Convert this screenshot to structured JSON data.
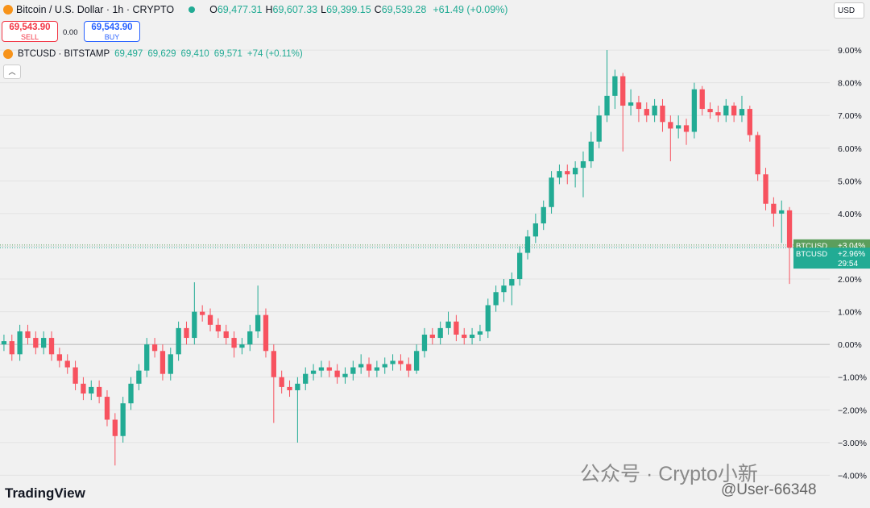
{
  "header": {
    "symbol_title": "Bitcoin / U.S. Dollar · 1h · CRYPTO",
    "ohlc": [
      {
        "label": "O",
        "value": "69,477.31"
      },
      {
        "label": "H",
        "value": "69,607.33"
      },
      {
        "label": "L",
        "value": "69,399.15"
      },
      {
        "label": "C",
        "value": "69,539.28"
      }
    ],
    "change": "+61.49 (+0.09%)",
    "sell": {
      "price": "69,543.90",
      "label": "SELL"
    },
    "spread": "0.00",
    "buy": {
      "price": "69,543.90",
      "label": "BUY"
    },
    "compare": {
      "symbol": "BTCUSD · BITSTAMP",
      "values": [
        "69,497",
        "69,629",
        "69,410",
        "69,571",
        "+74 (+0.11%)"
      ]
    },
    "currency": "USD"
  },
  "watermarks": {
    "logo": "TradingView",
    "channel": "公众号 · Crypto小新",
    "user": "@User-66348"
  },
  "chart_data": {
    "type": "candlestick",
    "up_color": "#22ab94",
    "down_color": "#f7525f",
    "ylim": [
      -5,
      10.53
    ],
    "yticks": [
      {
        "value": 9,
        "label": "9.00%"
      },
      {
        "value": 8,
        "label": "8.00%"
      },
      {
        "value": 7,
        "label": "7.00%"
      },
      {
        "value": 6,
        "label": "6.00%"
      },
      {
        "value": 5,
        "label": "5.00%"
      },
      {
        "value": 4,
        "label": "4.00%"
      },
      {
        "value": 3,
        "label": "3.00%"
      },
      {
        "value": 2,
        "label": "2.00%"
      },
      {
        "value": 1,
        "label": "1.00%"
      },
      {
        "value": 0,
        "label": "0.00%"
      },
      {
        "value": -1,
        "label": "−1.00%"
      },
      {
        "value": -2,
        "label": "−2.00%"
      },
      {
        "value": -3,
        "label": "−3.00%"
      },
      {
        "value": -4,
        "label": "−4.00%"
      }
    ],
    "grid": true,
    "price_labels": [
      {
        "name": "BTCUSD",
        "value": 3.04,
        "label": "+3.04%",
        "color": "#5c9e5c"
      },
      {
        "name": "BTCUSD",
        "value": 2.96,
        "label": "+2.96%",
        "color": "#22ab94",
        "countdown": "29:54"
      }
    ],
    "open": [
      0.0,
      0.1,
      -0.3,
      0.4,
      0.2,
      -0.1,
      0.2,
      -0.3,
      -0.5,
      -0.7,
      -1.2,
      -1.5,
      -1.3,
      -1.6,
      -2.3,
      -2.8,
      -1.8,
      -1.2,
      -0.8,
      0.0,
      -0.2,
      -0.9,
      -0.3,
      0.5,
      0.2,
      1.0,
      0.9,
      0.6,
      0.4,
      0.2,
      -0.1,
      0.0,
      0.4,
      0.9,
      -0.2,
      -1.0,
      -1.3,
      -1.4,
      -1.2,
      -0.9,
      -0.8,
      -0.7,
      -0.8,
      -1.0,
      -0.9,
      -0.7,
      -0.6,
      -0.8,
      -0.7,
      -0.6,
      -0.5,
      -0.6,
      -0.8,
      -0.2,
      0.3,
      0.2,
      0.5,
      0.7,
      0.3,
      0.2,
      0.3,
      0.4,
      1.2,
      1.6,
      1.8,
      2.0,
      2.8,
      3.3,
      3.7,
      4.2,
      5.1,
      5.3,
      5.2,
      5.4,
      5.6,
      6.2,
      7.0,
      7.6,
      8.2,
      7.3,
      7.4,
      7.2,
      7.0,
      7.3,
      6.8,
      6.6,
      6.7,
      6.5,
      7.8,
      7.2,
      7.1,
      7.0,
      7.3,
      7.0,
      7.2,
      6.4,
      5.2,
      4.3,
      4.0,
      4.1
    ],
    "high": [
      0.3,
      0.3,
      0.6,
      0.6,
      0.4,
      0.4,
      0.4,
      -0.1,
      -0.3,
      -0.5,
      -1.0,
      -1.1,
      -1.1,
      -1.4,
      -2.1,
      -1.6,
      -1.0,
      -0.6,
      0.2,
      0.2,
      0.0,
      -0.1,
      0.7,
      0.7,
      1.9,
      1.2,
      1.1,
      0.8,
      0.6,
      0.4,
      0.2,
      0.6,
      1.8,
      1.1,
      0.0,
      -0.8,
      -1.1,
      -1.0,
      -0.7,
      -0.6,
      -0.5,
      -0.5,
      -0.6,
      -0.7,
      -0.5,
      -0.3,
      -0.4,
      -0.5,
      -0.4,
      -0.3,
      -0.3,
      -0.4,
      0.0,
      0.5,
      0.5,
      0.7,
      1.0,
      0.9,
      0.5,
      0.5,
      0.6,
      1.4,
      1.8,
      2.0,
      2.2,
      3.0,
      3.5,
      4.0,
      4.4,
      5.3,
      5.5,
      5.5,
      5.6,
      5.9,
      6.5,
      7.3,
      9.0,
      8.4,
      8.3,
      7.8,
      7.6,
      7.4,
      7.5,
      7.5,
      7.0,
      7.0,
      6.9,
      8.0,
      7.9,
      7.4,
      7.3,
      7.5,
      7.4,
      7.6,
      7.3,
      6.5,
      5.4,
      4.5,
      4.4,
      4.2
    ],
    "low": [
      -0.2,
      -0.5,
      -0.5,
      0.0,
      -0.3,
      -0.3,
      -0.5,
      -0.7,
      -0.9,
      -1.4,
      -1.7,
      -1.7,
      -1.8,
      -2.5,
      -3.7,
      -3.0,
      -2.0,
      -1.4,
      -1.0,
      -0.4,
      -1.1,
      -1.1,
      -0.5,
      0.0,
      0.0,
      0.7,
      0.4,
      0.2,
      0.0,
      -0.4,
      -0.3,
      -0.2,
      0.2,
      -0.4,
      -2.4,
      -1.5,
      -1.6,
      -3.0,
      -1.4,
      -1.1,
      -1.0,
      -1.0,
      -1.2,
      -1.2,
      -1.1,
      -0.9,
      -1.0,
      -1.0,
      -0.9,
      -0.8,
      -0.8,
      -1.0,
      -0.9,
      -0.4,
      0.0,
      0.0,
      0.3,
      0.1,
      0.0,
      0.0,
      0.1,
      0.2,
      1.0,
      1.3,
      1.2,
      1.8,
      2.6,
      3.1,
      3.5,
      4.0,
      4.9,
      4.9,
      4.8,
      4.5,
      5.4,
      6.0,
      6.8,
      7.2,
      5.9,
      7.0,
      6.8,
      6.8,
      6.8,
      6.5,
      5.6,
      6.3,
      6.1,
      6.3,
      7.0,
      6.9,
      6.8,
      6.8,
      6.8,
      6.8,
      6.2,
      5.0,
      4.1,
      3.6,
      3.1,
      1.85
    ],
    "close": [
      0.1,
      -0.3,
      0.4,
      0.2,
      -0.1,
      0.2,
      -0.3,
      -0.5,
      -0.7,
      -1.2,
      -1.5,
      -1.3,
      -1.6,
      -2.3,
      -2.8,
      -1.8,
      -1.2,
      -0.8,
      0.0,
      -0.2,
      -0.9,
      -0.3,
      0.5,
      0.2,
      1.0,
      0.9,
      0.6,
      0.4,
      0.2,
      -0.1,
      0.0,
      0.4,
      0.9,
      -0.2,
      -1.0,
      -1.3,
      -1.4,
      -1.2,
      -0.9,
      -0.8,
      -0.7,
      -0.8,
      -1.0,
      -0.9,
      -0.7,
      -0.6,
      -0.8,
      -0.7,
      -0.6,
      -0.5,
      -0.6,
      -0.8,
      -0.2,
      0.3,
      0.2,
      0.5,
      0.7,
      0.3,
      0.2,
      0.3,
      0.4,
      1.2,
      1.6,
      1.8,
      2.0,
      2.8,
      3.3,
      3.7,
      4.2,
      5.1,
      5.3,
      5.2,
      5.4,
      5.6,
      6.2,
      7.0,
      7.6,
      8.2,
      7.3,
      7.4,
      7.2,
      7.0,
      7.3,
      6.8,
      6.6,
      6.7,
      6.5,
      7.8,
      7.2,
      7.1,
      7.0,
      7.3,
      7.0,
      7.2,
      6.4,
      5.2,
      4.3,
      4.0,
      4.1,
      2.96
    ]
  }
}
